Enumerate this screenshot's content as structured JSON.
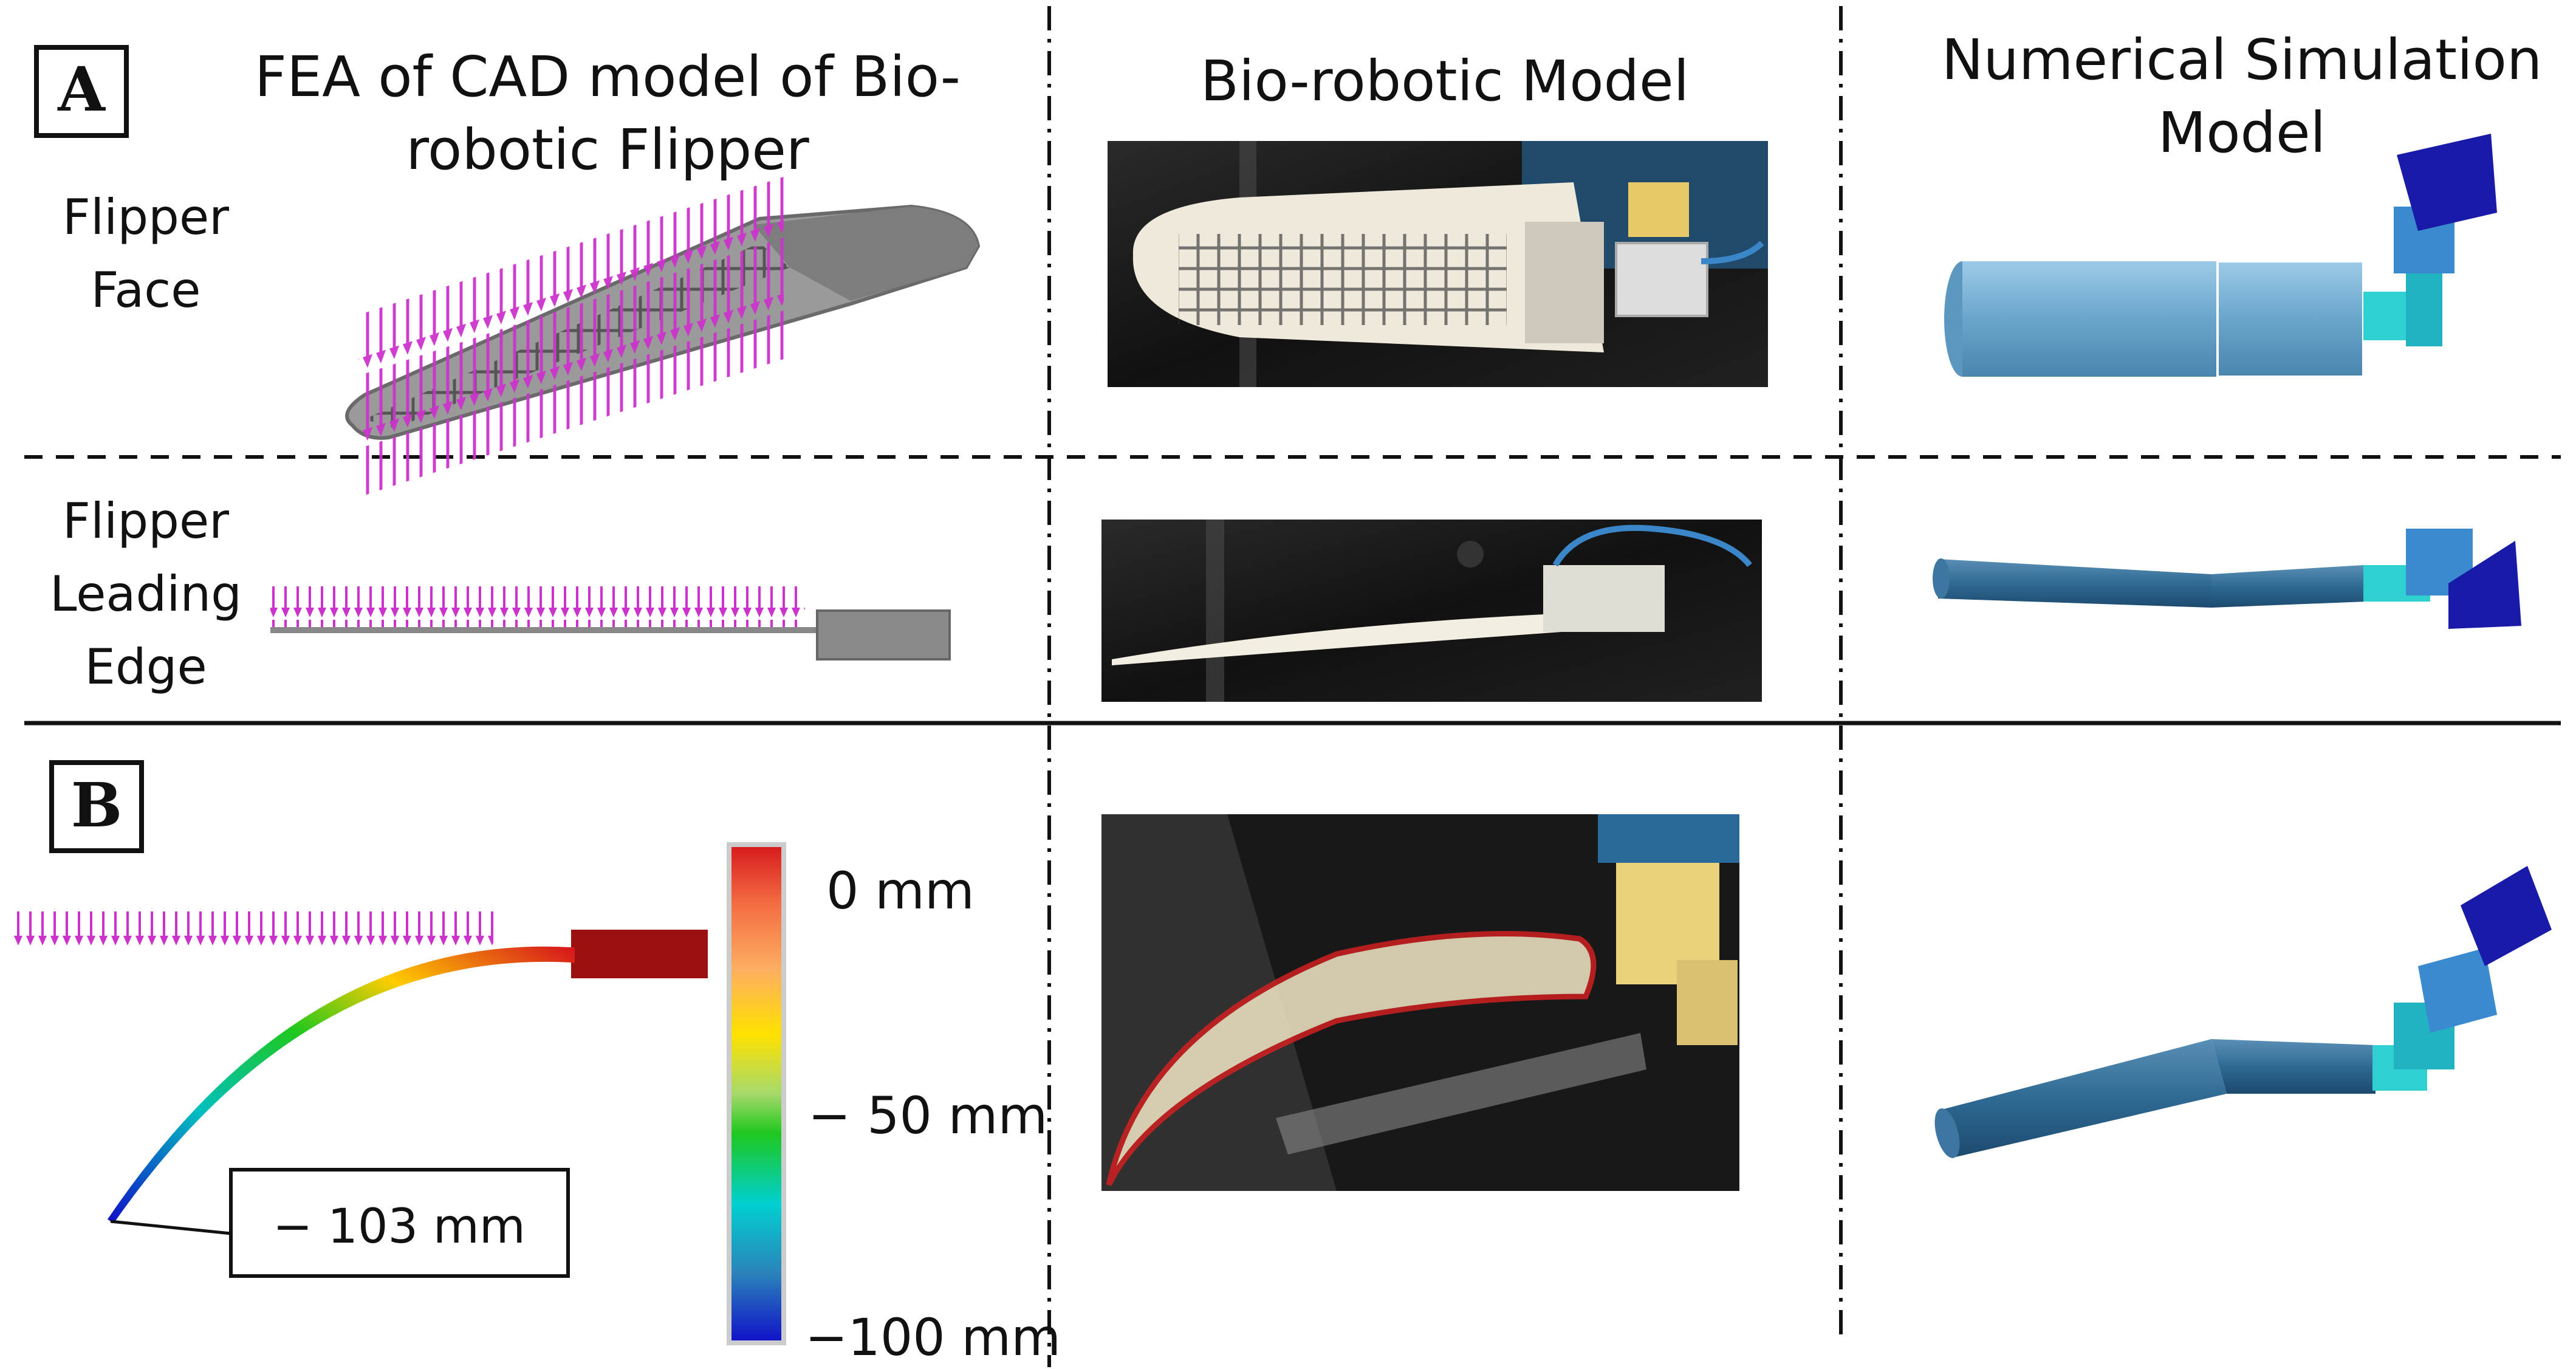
{
  "panels": {
    "a_letter": "A",
    "b_letter": "B"
  },
  "columns": {
    "fea_title_line1": "FEA of CAD model of Bio-",
    "fea_title_line2": "robotic Flipper",
    "robot_title": "Bio-robotic Model",
    "sim_title_line1": "Numerical Simulation",
    "sim_title_line2": "Model"
  },
  "rows": {
    "face_line1": "Flipper",
    "face_line2": "Face",
    "edge_line1": "Flipper",
    "edge_line2": "Leading",
    "edge_line3": "Edge"
  },
  "colorbar": {
    "top_label": "0 mm",
    "mid_label": "− 50 mm",
    "bottom_label": "−100 mm",
    "colors": [
      "#d7191c",
      "#f46d43",
      "#fdae61",
      "#ffe100",
      "#a6d96a",
      "#1ec81e",
      "#00d0d0",
      "#2b83ba",
      "#1010c8"
    ]
  },
  "callout": {
    "max_deflection": "− 103 mm"
  },
  "colors": {
    "load_arrows": "#cc33cc",
    "cad_gray": "#8e8e8e",
    "fixture_red": "#9c1010",
    "sim_blue": "#6aa5cc",
    "sim_cyan": "#2fd0d0",
    "sim_darkblue": "#1a1aa8",
    "outline_red": "#d02020"
  }
}
